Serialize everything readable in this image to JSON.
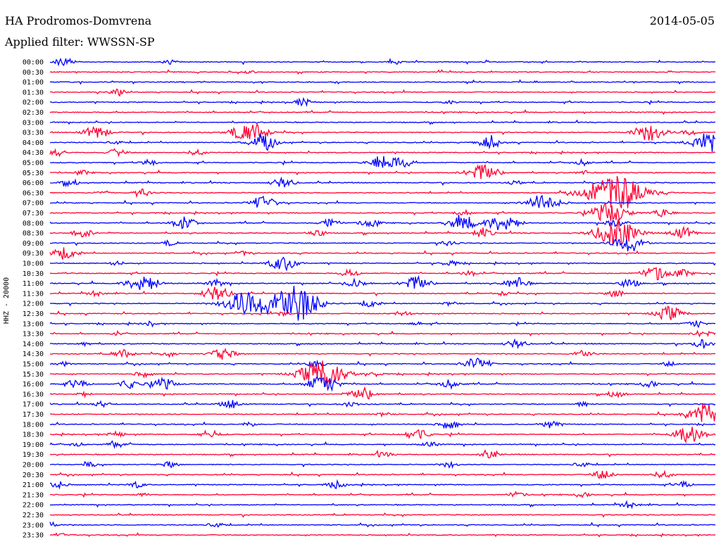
{
  "header": {
    "station": "HA Prodromos-Domvrena",
    "date": "2014-05-05",
    "filter": "Applied filter: WWSSN-SP"
  },
  "chart_data": {
    "type": "line",
    "ylabel": "HHZ - 20000",
    "colors": {
      "blue": "#0000ff",
      "red": "#ff0033"
    },
    "rows": [
      {
        "label": "00:00",
        "color": "blue",
        "events": [
          [
            0.02,
            6
          ],
          [
            0.18,
            3
          ],
          [
            0.52,
            3
          ]
        ]
      },
      {
        "label": "00:30",
        "color": "red",
        "events": [
          [
            0.3,
            2
          ]
        ]
      },
      {
        "label": "01:00",
        "color": "blue",
        "events": []
      },
      {
        "label": "01:30",
        "color": "red",
        "events": [
          [
            0.1,
            4
          ]
        ]
      },
      {
        "label": "02:00",
        "color": "blue",
        "events": [
          [
            0.38,
            5
          ],
          [
            0.6,
            2
          ]
        ]
      },
      {
        "label": "02:30",
        "color": "red",
        "events": []
      },
      {
        "label": "03:00",
        "color": "blue",
        "events": []
      },
      {
        "label": "03:30",
        "color": "red",
        "events": [
          [
            0.07,
            9
          ],
          [
            0.3,
            14
          ],
          [
            0.9,
            12
          ],
          [
            0.96,
            4
          ]
        ]
      },
      {
        "label": "04:00",
        "color": "blue",
        "events": [
          [
            0.1,
            3
          ],
          [
            0.32,
            10
          ],
          [
            0.66,
            8
          ],
          [
            0.99,
            14
          ]
        ]
      },
      {
        "label": "04:30",
        "color": "red",
        "events": [
          [
            0.01,
            5
          ],
          [
            0.1,
            5
          ],
          [
            0.22,
            4
          ]
        ]
      },
      {
        "label": "05:00",
        "color": "blue",
        "events": [
          [
            0.15,
            4
          ],
          [
            0.5,
            10
          ],
          [
            0.53,
            6
          ],
          [
            0.8,
            4
          ]
        ]
      },
      {
        "label": "05:30",
        "color": "red",
        "events": [
          [
            0.05,
            3
          ],
          [
            0.65,
            12
          ],
          [
            0.8,
            3
          ]
        ]
      },
      {
        "label": "06:00",
        "color": "blue",
        "events": [
          [
            0.03,
            5
          ],
          [
            0.35,
            7
          ],
          [
            0.7,
            3
          ]
        ]
      },
      {
        "label": "06:30",
        "color": "red",
        "events": [
          [
            0.08,
            3
          ],
          [
            0.14,
            5
          ],
          [
            0.85,
            26
          ]
        ]
      },
      {
        "label": "07:00",
        "color": "blue",
        "events": [
          [
            0.32,
            9
          ],
          [
            0.74,
            12
          ]
        ]
      },
      {
        "label": "07:30",
        "color": "red",
        "events": [
          [
            0.62,
            4
          ],
          [
            0.84,
            14
          ],
          [
            0.92,
            6
          ]
        ]
      },
      {
        "label": "08:00",
        "color": "blue",
        "events": [
          [
            0.2,
            8
          ],
          [
            0.42,
            6
          ],
          [
            0.48,
            6
          ],
          [
            0.62,
            10
          ],
          [
            0.68,
            12
          ],
          [
            0.85,
            6
          ]
        ]
      },
      {
        "label": "08:30",
        "color": "red",
        "events": [
          [
            0.05,
            6
          ],
          [
            0.4,
            5
          ],
          [
            0.65,
            6
          ],
          [
            0.85,
            18
          ],
          [
            0.95,
            8
          ]
        ]
      },
      {
        "label": "09:00",
        "color": "blue",
        "events": [
          [
            0.18,
            3
          ],
          [
            0.6,
            4
          ],
          [
            0.87,
            12
          ]
        ]
      },
      {
        "label": "09:30",
        "color": "red",
        "events": [
          [
            0.02,
            9
          ],
          [
            0.29,
            3
          ]
        ]
      },
      {
        "label": "10:00",
        "color": "blue",
        "events": [
          [
            0.1,
            3
          ],
          [
            0.35,
            10
          ],
          [
            0.6,
            4
          ]
        ]
      },
      {
        "label": "10:30",
        "color": "red",
        "events": [
          [
            0.45,
            5
          ],
          [
            0.63,
            4
          ],
          [
            0.91,
            10
          ],
          [
            0.95,
            5
          ]
        ]
      },
      {
        "label": "11:00",
        "color": "blue",
        "events": [
          [
            0.14,
            12
          ],
          [
            0.25,
            5
          ],
          [
            0.46,
            6
          ],
          [
            0.55,
            10
          ],
          [
            0.7,
            8
          ],
          [
            0.87,
            6
          ]
        ]
      },
      {
        "label": "11:30",
        "color": "red",
        "events": [
          [
            0.07,
            4
          ],
          [
            0.25,
            10
          ],
          [
            0.68,
            3
          ],
          [
            0.85,
            5
          ]
        ]
      },
      {
        "label": "12:00",
        "color": "blue",
        "events": [
          [
            0.29,
            16
          ],
          [
            0.35,
            20
          ],
          [
            0.38,
            15
          ],
          [
            0.48,
            5
          ],
          [
            0.6,
            3
          ]
        ]
      },
      {
        "label": "12:30",
        "color": "red",
        "events": [
          [
            0.35,
            3
          ],
          [
            0.53,
            4
          ],
          [
            0.93,
            10
          ]
        ]
      },
      {
        "label": "13:00",
        "color": "blue",
        "events": [
          [
            0.15,
            3
          ],
          [
            0.55,
            2
          ],
          [
            0.97,
            5
          ]
        ]
      },
      {
        "label": "13:30",
        "color": "red",
        "events": [
          [
            0.1,
            2
          ],
          [
            0.98,
            5
          ]
        ]
      },
      {
        "label": "14:00",
        "color": "blue",
        "events": [
          [
            0.05,
            3
          ],
          [
            0.7,
            6
          ],
          [
            0.98,
            6
          ]
        ]
      },
      {
        "label": "14:30",
        "color": "red",
        "events": [
          [
            0.11,
            6
          ],
          [
            0.18,
            3
          ],
          [
            0.26,
            8
          ],
          [
            0.8,
            6
          ]
        ]
      },
      {
        "label": "15:00",
        "color": "blue",
        "events": [
          [
            0.02,
            3
          ],
          [
            0.4,
            5
          ],
          [
            0.64,
            9
          ],
          [
            0.93,
            3
          ]
        ]
      },
      {
        "label": "15:30",
        "color": "red",
        "events": [
          [
            0.14,
            4
          ],
          [
            0.41,
            20
          ],
          [
            0.49,
            3
          ]
        ]
      },
      {
        "label": "16:00",
        "color": "blue",
        "events": [
          [
            0.04,
            6
          ],
          [
            0.12,
            6
          ],
          [
            0.17,
            8
          ],
          [
            0.41,
            12
          ],
          [
            0.6,
            6
          ],
          [
            0.9,
            4
          ]
        ]
      },
      {
        "label": "16:30",
        "color": "red",
        "events": [
          [
            0.05,
            3
          ],
          [
            0.47,
            9
          ],
          [
            0.85,
            5
          ]
        ]
      },
      {
        "label": "17:00",
        "color": "blue",
        "events": [
          [
            0.08,
            4
          ],
          [
            0.27,
            6
          ],
          [
            0.45,
            4
          ],
          [
            0.8,
            3
          ]
        ]
      },
      {
        "label": "17:30",
        "color": "red",
        "events": [
          [
            0.5,
            3
          ],
          [
            0.99,
            16
          ]
        ]
      },
      {
        "label": "18:00",
        "color": "blue",
        "events": [
          [
            0.3,
            3
          ],
          [
            0.6,
            6
          ],
          [
            0.75,
            5
          ]
        ]
      },
      {
        "label": "18:30",
        "color": "red",
        "events": [
          [
            0.1,
            4
          ],
          [
            0.24,
            6
          ],
          [
            0.55,
            8
          ],
          [
            0.96,
            12
          ]
        ]
      },
      {
        "label": "19:00",
        "color": "blue",
        "events": [
          [
            0.04,
            3
          ],
          [
            0.1,
            4
          ],
          [
            0.57,
            4
          ]
        ]
      },
      {
        "label": "19:30",
        "color": "red",
        "events": [
          [
            0.5,
            4
          ],
          [
            0.66,
            5
          ]
        ]
      },
      {
        "label": "20:00",
        "color": "blue",
        "events": [
          [
            0.06,
            3
          ],
          [
            0.18,
            4
          ],
          [
            0.6,
            4
          ],
          [
            0.8,
            4
          ]
        ]
      },
      {
        "label": "20:30",
        "color": "red",
        "events": [
          [
            0.83,
            6
          ],
          [
            0.92,
            5
          ]
        ]
      },
      {
        "label": "21:00",
        "color": "blue",
        "events": [
          [
            0.01,
            5
          ],
          [
            0.13,
            4
          ],
          [
            0.43,
            5
          ],
          [
            0.95,
            4
          ]
        ]
      },
      {
        "label": "21:30",
        "color": "red",
        "events": [
          [
            0.14,
            2
          ],
          [
            0.7,
            4
          ],
          [
            0.8,
            3
          ]
        ]
      },
      {
        "label": "22:00",
        "color": "blue",
        "events": [
          [
            0.87,
            5
          ]
        ]
      },
      {
        "label": "22:30",
        "color": "red",
        "events": []
      },
      {
        "label": "23:00",
        "color": "blue",
        "events": [
          [
            0.0,
            4
          ],
          [
            0.25,
            4
          ]
        ]
      },
      {
        "label": "23:30",
        "color": "red",
        "events": [
          [
            0.02,
            2
          ]
        ]
      }
    ]
  }
}
